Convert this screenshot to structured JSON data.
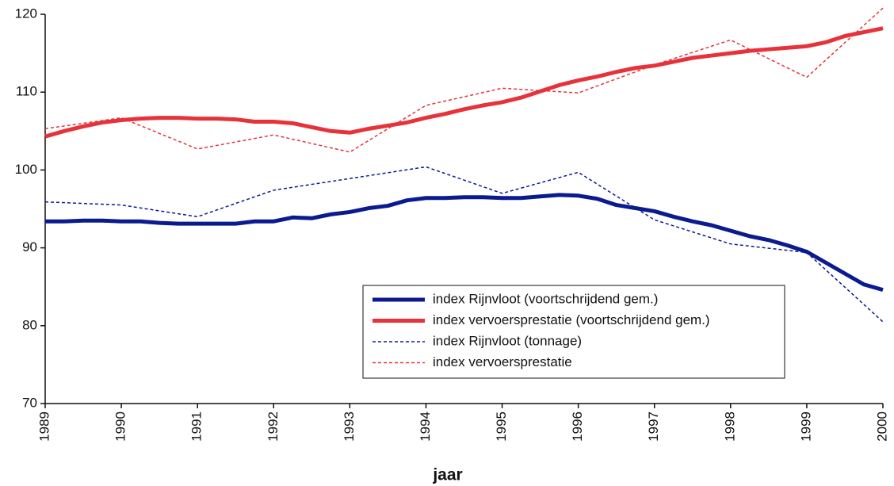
{
  "chart_data": {
    "type": "line",
    "xlabel": "jaar",
    "xlim": [
      1989,
      2000
    ],
    "xticks": [
      1989,
      1990,
      1991,
      1992,
      1993,
      1994,
      1995,
      1996,
      1997,
      1998,
      1999,
      2000
    ],
    "ylim": [
      70,
      120
    ],
    "yticks": [
      70,
      80,
      90,
      100,
      110,
      120
    ],
    "grid": false,
    "legend": "lower right",
    "series": [
      {
        "name": "index Rijnvloot (voortschrijdend gem.)",
        "color": "#0b1b8f",
        "linewidth": 5,
        "dashed": false,
        "x": [
          1989,
          1989.25,
          1989.5,
          1989.75,
          1990,
          1990.25,
          1990.5,
          1990.75,
          1991,
          1991.25,
          1991.5,
          1991.75,
          1992,
          1992.25,
          1992.5,
          1992.75,
          1993,
          1993.25,
          1993.5,
          1993.75,
          1994,
          1994.25,
          1994.5,
          1994.75,
          1995,
          1995.25,
          1995.5,
          1995.75,
          1996,
          1996.25,
          1996.5,
          1996.75,
          1997,
          1997.25,
          1997.5,
          1997.75,
          1998,
          1998.25,
          1998.5,
          1998.75,
          1999,
          1999.25,
          1999.5,
          1999.75,
          2000
        ],
        "values": [
          93.4,
          93.4,
          93.5,
          93.5,
          93.4,
          93.4,
          93.2,
          93.1,
          93.1,
          93.1,
          93.1,
          93.4,
          93.4,
          93.9,
          93.8,
          94.3,
          94.6,
          95.1,
          95.4,
          96.1,
          96.4,
          96.4,
          96.5,
          96.5,
          96.4,
          96.4,
          96.6,
          96.8,
          96.7,
          96.3,
          95.5,
          95.1,
          94.7,
          94.0,
          93.4,
          92.9,
          92.2,
          91.5,
          91.0,
          90.3,
          89.5,
          88.1,
          86.7,
          85.3,
          84.6
        ]
      },
      {
        "name": "index vervoersprestatie (voortschrijdend gem.)",
        "color": "#e8323a",
        "linewidth": 5,
        "dashed": false,
        "x": [
          1989,
          1989.25,
          1989.5,
          1989.75,
          1990,
          1990.25,
          1990.5,
          1990.75,
          1991,
          1991.25,
          1991.5,
          1991.75,
          1992,
          1992.25,
          1992.5,
          1992.75,
          1993,
          1993.25,
          1993.5,
          1993.75,
          1994,
          1994.25,
          1994.5,
          1994.75,
          1995,
          1995.25,
          1995.5,
          1995.75,
          1996,
          1996.25,
          1996.5,
          1996.75,
          1997,
          1997.25,
          1997.5,
          1997.75,
          1998,
          1998.25,
          1998.5,
          1998.75,
          1999,
          1999.25,
          1999.5,
          1999.75,
          2000
        ],
        "values": [
          104.3,
          105.0,
          105.6,
          106.1,
          106.4,
          106.6,
          106.7,
          106.7,
          106.6,
          106.6,
          106.5,
          106.2,
          106.2,
          106.0,
          105.5,
          105.0,
          104.8,
          105.3,
          105.7,
          106.1,
          106.7,
          107.2,
          107.8,
          108.3,
          108.7,
          109.3,
          110.1,
          110.9,
          111.5,
          112.0,
          112.6,
          113.1,
          113.4,
          113.9,
          114.4,
          114.7,
          115.0,
          115.3,
          115.5,
          115.7,
          115.9,
          116.4,
          117.2,
          117.7,
          118.2
        ]
      },
      {
        "name": "index Rijnvloot (tonnage)",
        "color": "#0b1b8f",
        "linewidth": 1.5,
        "dashed": true,
        "x": [
          1989,
          1990,
          1991,
          1992,
          1993,
          1994,
          1995,
          1996,
          1997,
          1998,
          1999,
          2000
        ],
        "values": [
          95.9,
          95.5,
          94.0,
          97.4,
          98.9,
          100.4,
          97.0,
          99.7,
          93.6,
          90.5,
          89.4,
          80.5
        ]
      },
      {
        "name": "index vervoersprestatie",
        "color": "#e8323a",
        "linewidth": 1.5,
        "dashed": true,
        "x": [
          1989,
          1990,
          1991,
          1992,
          1993,
          1994,
          1995,
          1996,
          1997,
          1998,
          1999,
          2000
        ],
        "values": [
          105.3,
          106.7,
          102.7,
          104.5,
          102.3,
          108.3,
          110.5,
          109.9,
          113.5,
          116.7,
          111.9,
          120.8
        ]
      }
    ]
  }
}
